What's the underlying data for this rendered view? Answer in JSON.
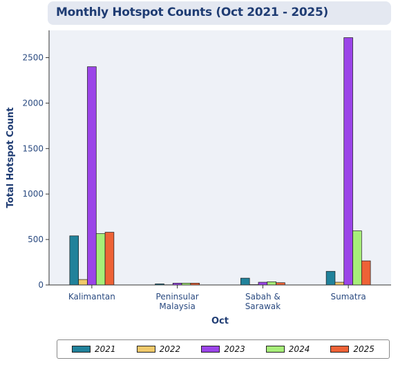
{
  "colors": {
    "plot_bg": "#eef1f7",
    "axis": "#333333",
    "text": "#2a4a80"
  },
  "chart_data": {
    "type": "bar",
    "title": "Monthly Hotspot Counts (Oct 2021 - 2025)",
    "xlabel": "Oct",
    "ylabel": "Total Hotspot Count",
    "ylim": [
      0,
      2800
    ],
    "yticks": [
      0,
      500,
      1000,
      1500,
      2000,
      2500
    ],
    "grid": false,
    "legend_position": "bottom",
    "categories": [
      [
        "Kalimantan"
      ],
      [
        "Peninsular",
        "Malaysia"
      ],
      [
        "Sabah &",
        "Sarawak"
      ],
      [
        "Sumatra"
      ]
    ],
    "series": [
      {
        "name": "2021",
        "color": "#21829b",
        "values": [
          540,
          12,
          75,
          150
        ]
      },
      {
        "name": "2022",
        "color": "#f0c96a",
        "values": [
          60,
          2,
          4,
          30
        ]
      },
      {
        "name": "2023",
        "color": "#9b45e8",
        "values": [
          2400,
          20,
          30,
          2720
        ]
      },
      {
        "name": "2024",
        "color": "#a7ee79",
        "values": [
          565,
          20,
          35,
          595
        ]
      },
      {
        "name": "2025",
        "color": "#ee6236",
        "values": [
          580,
          20,
          25,
          265
        ]
      }
    ]
  }
}
